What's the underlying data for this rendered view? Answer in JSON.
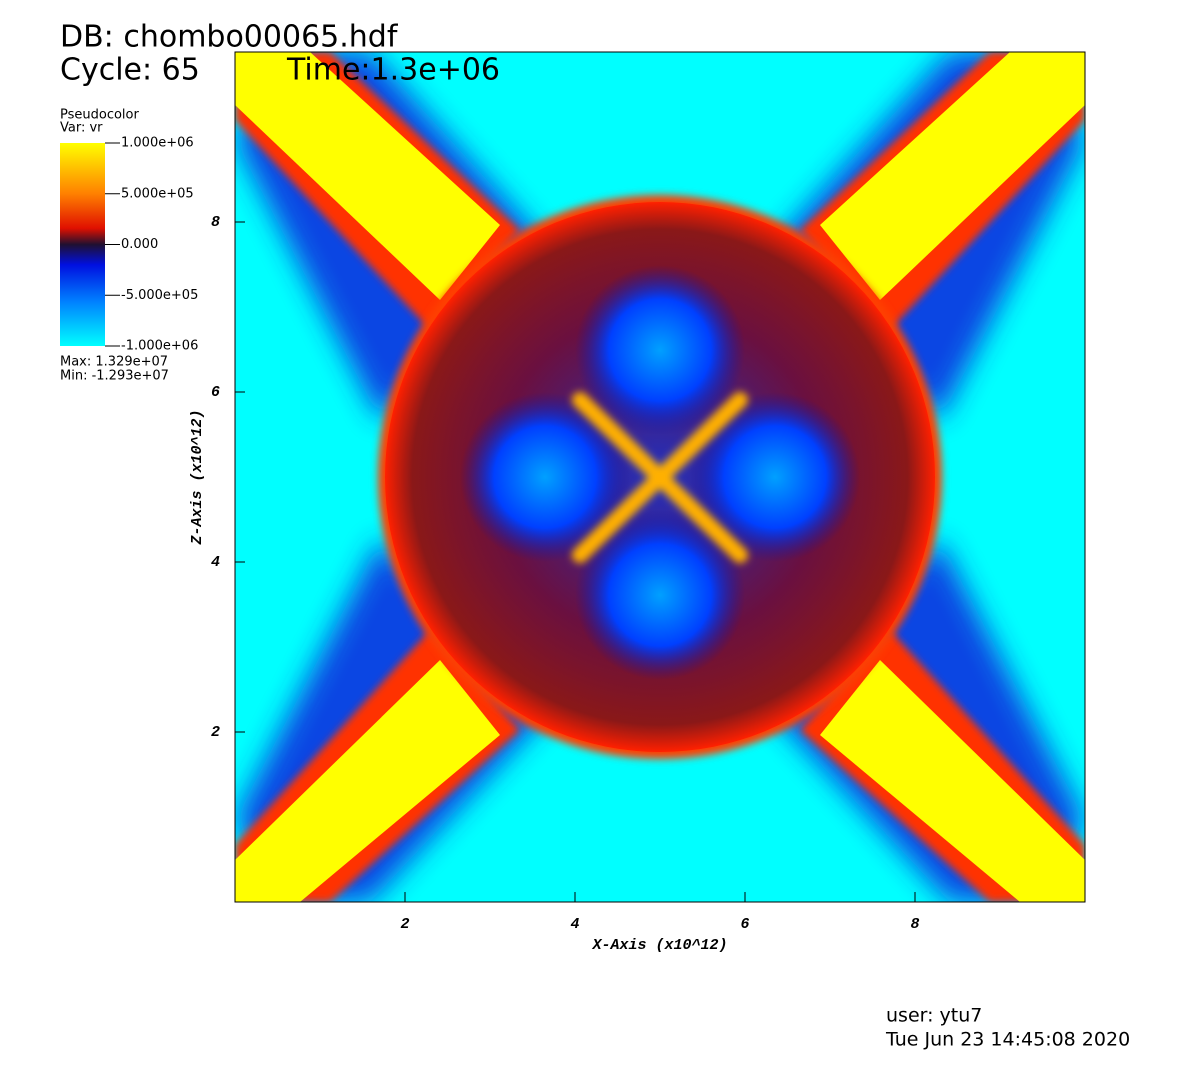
{
  "chart_data": {
    "type": "pseudocolor",
    "db": "DB: chombo00065.hdf",
    "cycle": "Cycle: 65",
    "time": "Time:1.3e+06",
    "legend": {
      "title": "Pseudocolor",
      "var": "Var: vr",
      "clim": [
        -1000000,
        1000000
      ],
      "ticks": [
        {
          "value": 1000000,
          "label": "1.000e+06"
        },
        {
          "value": 500000,
          "label": "5.000e+05"
        },
        {
          "value": 0,
          "label": "0.000"
        },
        {
          "value": -500000,
          "label": "-5.000e+05"
        },
        {
          "value": -1000000,
          "label": "-1.000e+06"
        }
      ],
      "max": "Max:  1.329e+07",
      "min": "Min: -1.293e+07"
    },
    "xlabel": "X-Axis (x10^12)",
    "ylabel": "Z-Axis (x10^12)",
    "xlim": [
      0,
      10
    ],
    "ylim": [
      0,
      10
    ],
    "xticks": [
      2,
      4,
      6,
      8
    ],
    "yticks": [
      2,
      4,
      6,
      8
    ],
    "user": "user: ytu7",
    "date": "Tue Jun 23 14:45:08 2020"
  }
}
